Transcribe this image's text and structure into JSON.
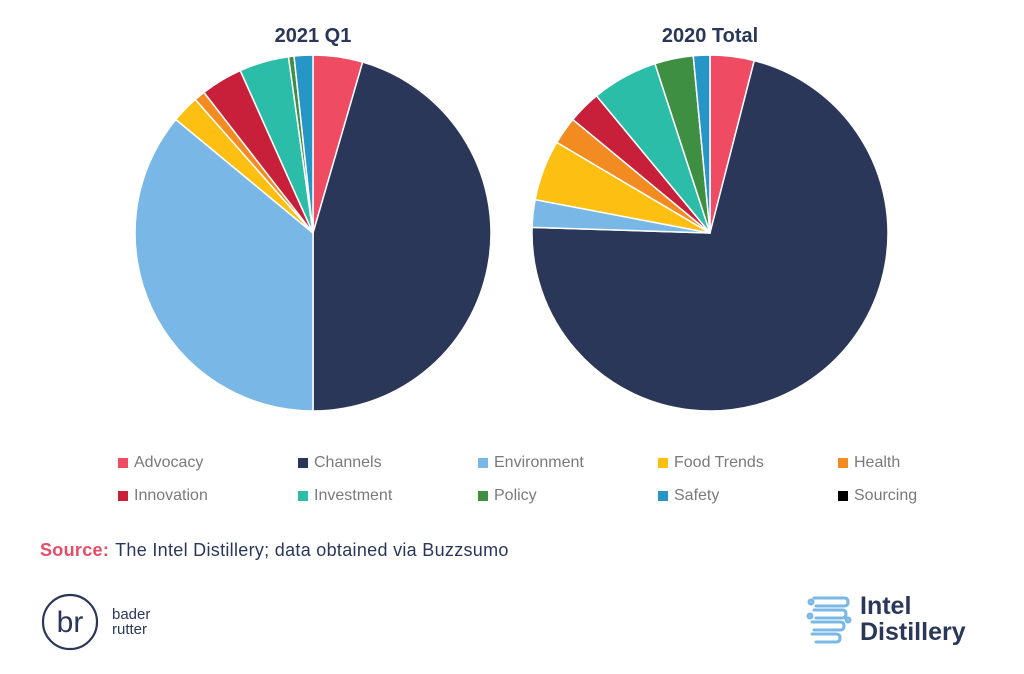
{
  "chart_data": [
    {
      "type": "pie",
      "title": "2021 Q1",
      "categories": [
        "Advocacy",
        "Channels",
        "Environment",
        "Food Trends",
        "Health",
        "Innovation",
        "Investment",
        "Policy",
        "Safety",
        "Sourcing"
      ],
      "values": [
        4.5,
        45.5,
        36.0,
        2.5,
        1.0,
        3.8,
        4.5,
        0.5,
        1.7,
        0.0
      ]
    },
    {
      "type": "pie",
      "title": "2020 Total",
      "categories": [
        "Advocacy",
        "Channels",
        "Environment",
        "Food Trends",
        "Health",
        "Innovation",
        "Investment",
        "Policy",
        "Safety",
        "Sourcing"
      ],
      "values": [
        4.0,
        71.5,
        2.5,
        5.5,
        2.5,
        3.0,
        6.0,
        3.5,
        1.5,
        0.0
      ]
    }
  ],
  "legend": {
    "items": [
      {
        "label": "Advocacy",
        "color": "#ef4b62"
      },
      {
        "label": "Channels",
        "color": "#2a3759"
      },
      {
        "label": "Environment",
        "color": "#79b8e6"
      },
      {
        "label": "Food Trends",
        "color": "#fcbf12"
      },
      {
        "label": "Health",
        "color": "#f28c22"
      },
      {
        "label": "Innovation",
        "color": "#c8203a"
      },
      {
        "label": "Investment",
        "color": "#2cbda8"
      },
      {
        "label": "Policy",
        "color": "#3f8f43"
      },
      {
        "label": "Safety",
        "color": "#2596c6"
      },
      {
        "label": "Sourcing",
        "color": "#000000"
      }
    ]
  },
  "source": {
    "label": "Source:",
    "text": "The Intel Distillery; data obtained via Buzzsumo"
  },
  "logos": {
    "bader_rutter": {
      "line1": "bader",
      "line2": "rutter"
    },
    "intel_distillery": {
      "line1": "Intel",
      "line2": "Distillery"
    }
  }
}
